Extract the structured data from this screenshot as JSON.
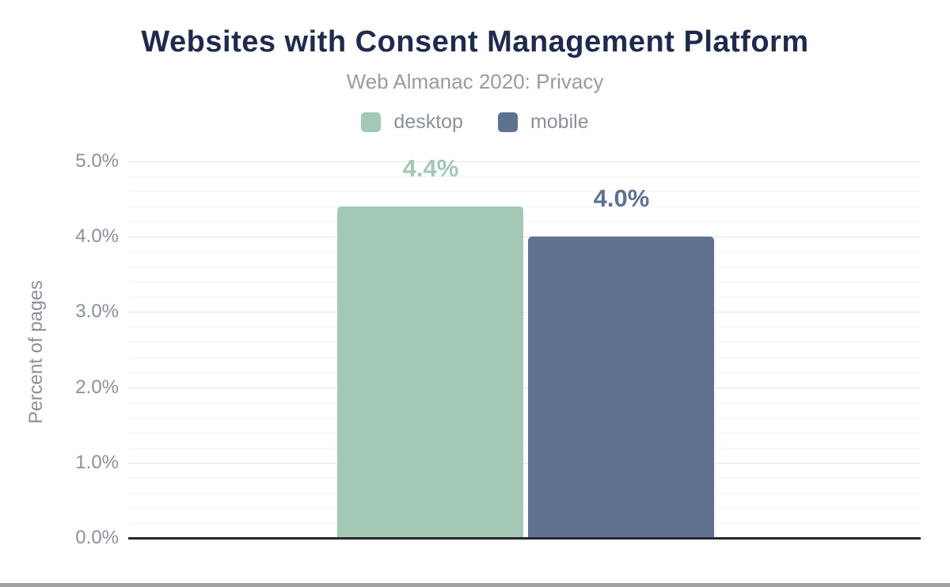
{
  "page": {
    "background": "#ffffff",
    "bottom_bar_color": "#a2a2a2"
  },
  "chart_data": {
    "type": "bar",
    "title": "Websites with Consent Management Platform",
    "subtitle": "Web Almanac 2020: Privacy",
    "categories": [
      ""
    ],
    "series": [
      {
        "name": "desktop",
        "values": [
          4.4
        ],
        "data_label": "4.4%",
        "color": "#a3c8b6"
      },
      {
        "name": "mobile",
        "values": [
          4.0
        ],
        "data_label": "4.0%",
        "color": "#5e7290"
      }
    ],
    "xlabel": "",
    "ylabel": "Percent of pages",
    "ylim": [
      0,
      5
    ],
    "yticks": [
      {
        "value": 0,
        "label": "0.0%"
      },
      {
        "value": 1,
        "label": "1.0%"
      },
      {
        "value": 2,
        "label": "2.0%"
      },
      {
        "value": 3,
        "label": "3.0%"
      },
      {
        "value": 4,
        "label": "4.0%"
      },
      {
        "value": 5,
        "label": "5.0%"
      }
    ],
    "minor_tick_step": 0.2,
    "grid": true,
    "legend_position": "top",
    "colors": {
      "title": "#1f2b4c",
      "subtitle": "#9a9aa1",
      "axis_text": "#8b909a",
      "major_grid": "#e5e5e5",
      "minor_grid": "#f4f4f4",
      "axis_line": "#26282e"
    }
  }
}
